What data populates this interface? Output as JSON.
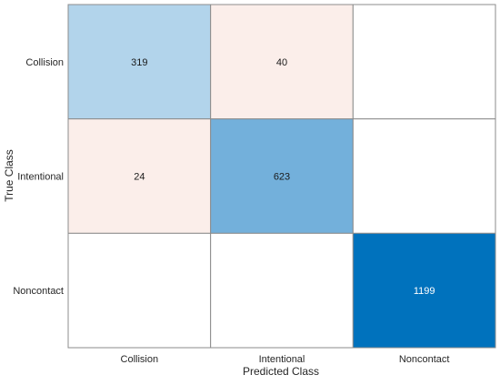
{
  "chart_data": {
    "type": "heatmap",
    "title": "",
    "xlabel": "Predicted Class",
    "ylabel": "True Class",
    "x_categories": [
      "Collision",
      "Intentional",
      "Noncontact"
    ],
    "y_categories": [
      "Collision",
      "Intentional",
      "Noncontact"
    ],
    "values": [
      [
        319,
        40,
        null
      ],
      [
        24,
        623,
        null
      ],
      [
        null,
        null,
        1199
      ]
    ],
    "colors": {
      "cell_319": "#b2d4eb",
      "cell_623": "#73b0db",
      "cell_1199": "#0072bd",
      "off_diagonal_nonzero": "#fbeeea",
      "empty": "#ffffff",
      "grid_line": "#8c8c8c",
      "text_dark": "#1a1a1a",
      "text_light": "#ffffff"
    },
    "grid": true,
    "legend": "none"
  }
}
